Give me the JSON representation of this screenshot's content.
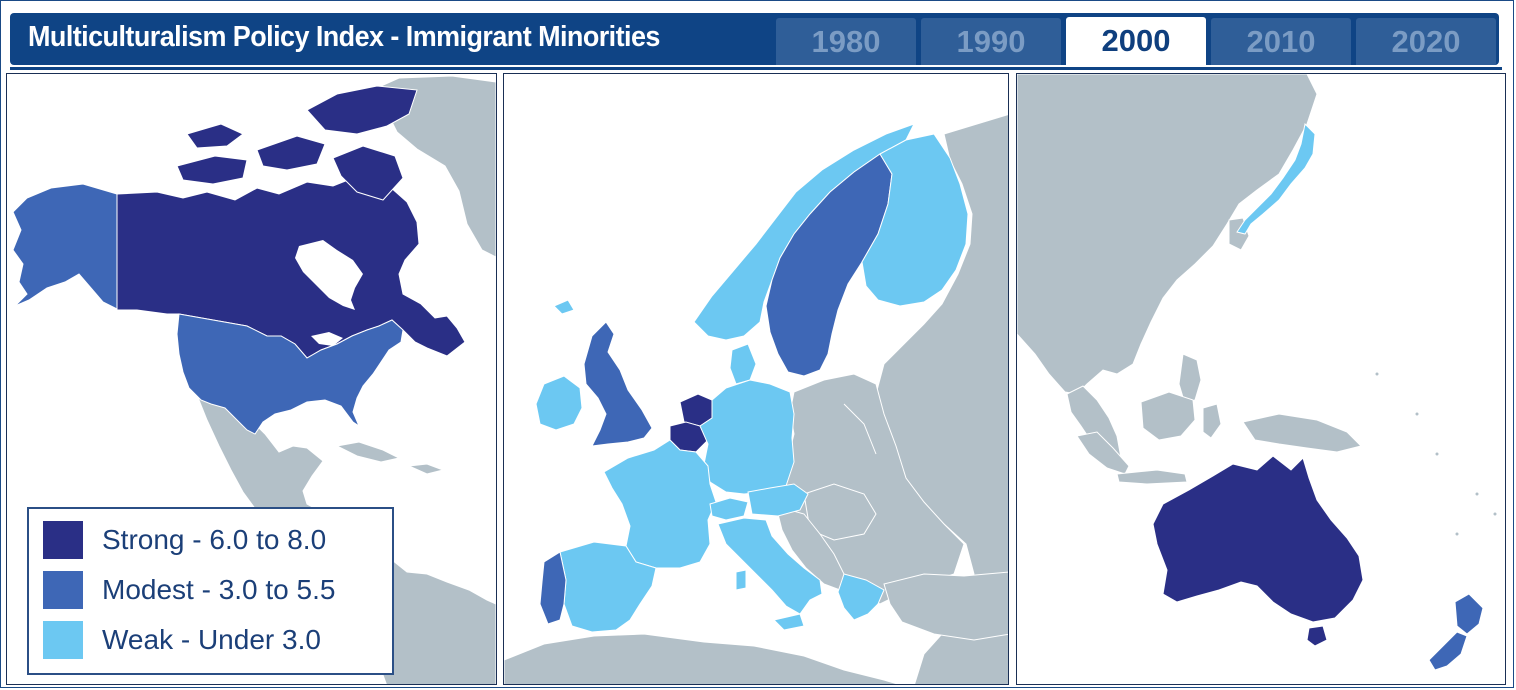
{
  "header": {
    "title": "Multiculturalism Policy Index - Immigrant Minorities",
    "tabs": [
      {
        "label": "1980",
        "active": false
      },
      {
        "label": "1990",
        "active": false
      },
      {
        "label": "2000",
        "active": true
      },
      {
        "label": "2010",
        "active": false
      },
      {
        "label": "2020",
        "active": false
      }
    ]
  },
  "legend": {
    "items": [
      {
        "label": "Strong - 6.0 to 8.0",
        "color": "#2a2f86"
      },
      {
        "label": "Modest - 3.0 to 5.5",
        "color": "#3e67b6"
      },
      {
        "label": "Weak - Under 3.0",
        "color": "#6cc8f2"
      }
    ]
  },
  "colors": {
    "other_land": "#b3c0c8",
    "water": "#ffffff",
    "header_bg": "#0f4485"
  },
  "map_data": {
    "selected_year": "2000",
    "panels": [
      {
        "region": "north-america",
        "countries": [
          {
            "name": "Canada",
            "category": "Strong"
          },
          {
            "name": "United States",
            "category": "Modest"
          }
        ]
      },
      {
        "region": "europe",
        "countries": [
          {
            "name": "United Kingdom",
            "category": "Modest"
          },
          {
            "name": "Ireland",
            "category": "Weak"
          },
          {
            "name": "Netherlands",
            "category": "Strong"
          },
          {
            "name": "Belgium",
            "category": "Strong"
          },
          {
            "name": "Sweden",
            "category": "Modest"
          },
          {
            "name": "Portugal",
            "category": "Modest"
          },
          {
            "name": "Norway",
            "category": "Weak"
          },
          {
            "name": "Finland",
            "category": "Weak"
          },
          {
            "name": "Denmark",
            "category": "Weak"
          },
          {
            "name": "Germany",
            "category": "Weak"
          },
          {
            "name": "France",
            "category": "Weak"
          },
          {
            "name": "Spain",
            "category": "Weak"
          },
          {
            "name": "Italy",
            "category": "Weak"
          },
          {
            "name": "Switzerland",
            "category": "Weak"
          },
          {
            "name": "Austria",
            "category": "Weak"
          },
          {
            "name": "Greece",
            "category": "Weak"
          }
        ]
      },
      {
        "region": "asia-pacific",
        "countries": [
          {
            "name": "Australia",
            "category": "Strong"
          },
          {
            "name": "New Zealand",
            "category": "Modest"
          },
          {
            "name": "Japan",
            "category": "Weak"
          }
        ]
      }
    ]
  }
}
